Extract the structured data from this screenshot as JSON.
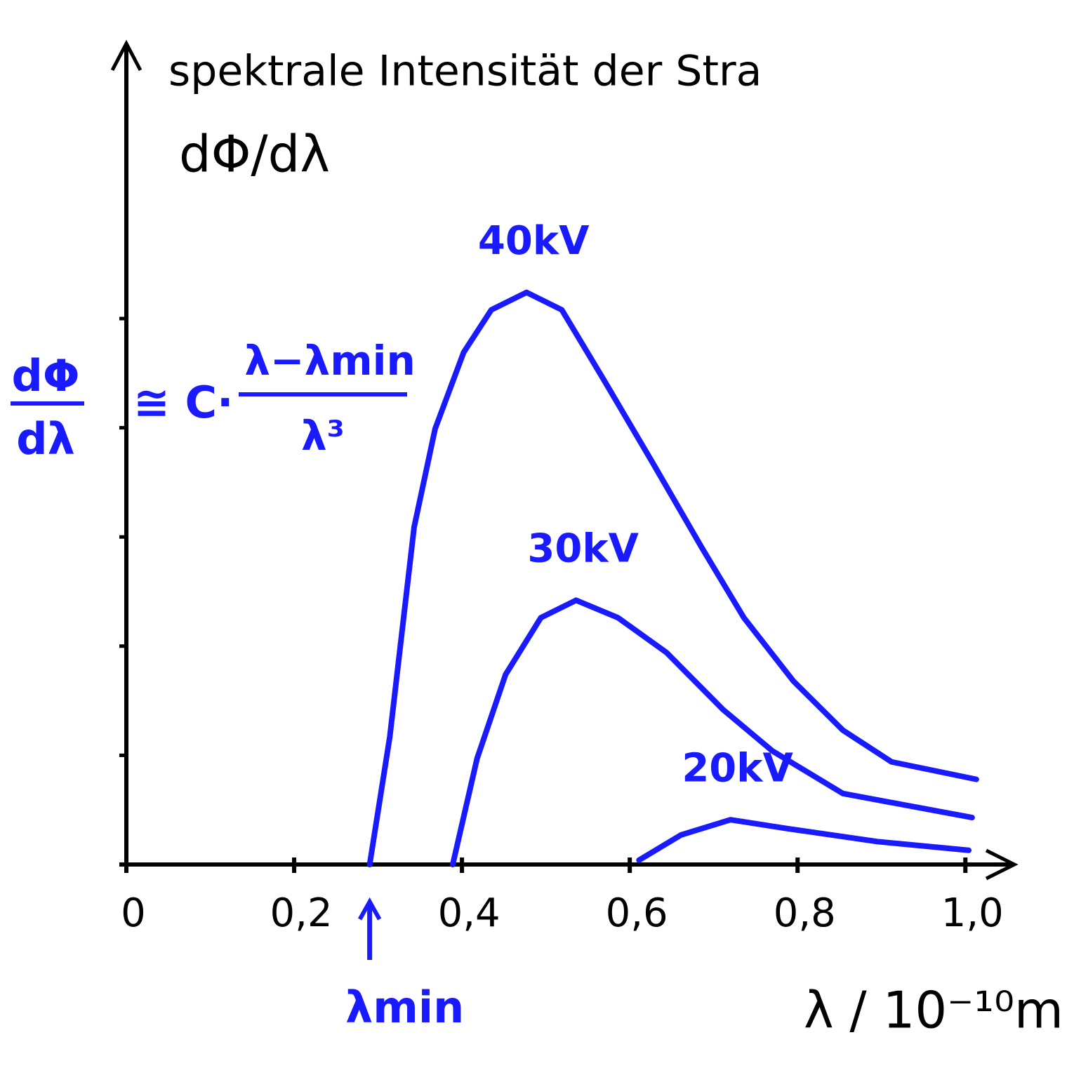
{
  "chart_data": {
    "type": "line",
    "title": "spektrale Intensität der Stra",
    "subtitle": "dΦ/dλ",
    "x_label": "λ / 10⁻¹⁰m",
    "formula": {
      "lhs_numerator": "dΦ",
      "lhs_denominator": "dλ",
      "operator": "≅ C·",
      "numerator": "λ−λmin",
      "denominator": "λ³"
    },
    "annotation": {
      "text": "λmin",
      "x": 0.29
    },
    "xlim": [
      0,
      1.06
    ],
    "ylim": [
      0,
      7.5
    ],
    "xticks": [
      {
        "value": 0,
        "label": "0"
      },
      {
        "value": 0.2,
        "label": "0,2"
      },
      {
        "value": 0.4,
        "label": "0,4"
      },
      {
        "value": 0.6,
        "label": "0,6"
      },
      {
        "value": 0.8,
        "label": "0,8"
      },
      {
        "value": 1.0,
        "label": "1,0"
      }
    ],
    "yticks": [
      1,
      2,
      3,
      4,
      5
    ],
    "series": [
      {
        "name": "40kV",
        "color": "#1a1aff",
        "x": [
          0.29,
          0.314,
          0.343,
          0.368,
          0.402,
          0.435,
          0.477,
          0.519,
          0.569,
          0.628,
          0.686,
          0.736,
          0.795,
          0.854,
          0.912,
          1.013
        ],
        "values": [
          0,
          1.17,
          3.09,
          3.99,
          4.69,
          5.08,
          5.24,
          5.08,
          4.44,
          3.67,
          2.9,
          2.26,
          1.68,
          1.23,
          0.94,
          0.78
        ]
      },
      {
        "name": "30kV",
        "color": "#1a1aff",
        "x": [
          0.389,
          0.418,
          0.452,
          0.494,
          0.536,
          0.586,
          0.644,
          0.711,
          0.77,
          0.854,
          1.008
        ],
        "values": [
          0,
          0.97,
          1.74,
          2.26,
          2.42,
          2.26,
          1.94,
          1.42,
          1.04,
          0.65,
          0.43
        ]
      },
      {
        "name": "20kV",
        "color": "#1a1aff",
        "x": [
          0.611,
          0.661,
          0.72,
          0.787,
          0.895,
          1.004
        ],
        "values": [
          0.04,
          0.27,
          0.41,
          0.33,
          0.21,
          0.13
        ]
      }
    ]
  }
}
